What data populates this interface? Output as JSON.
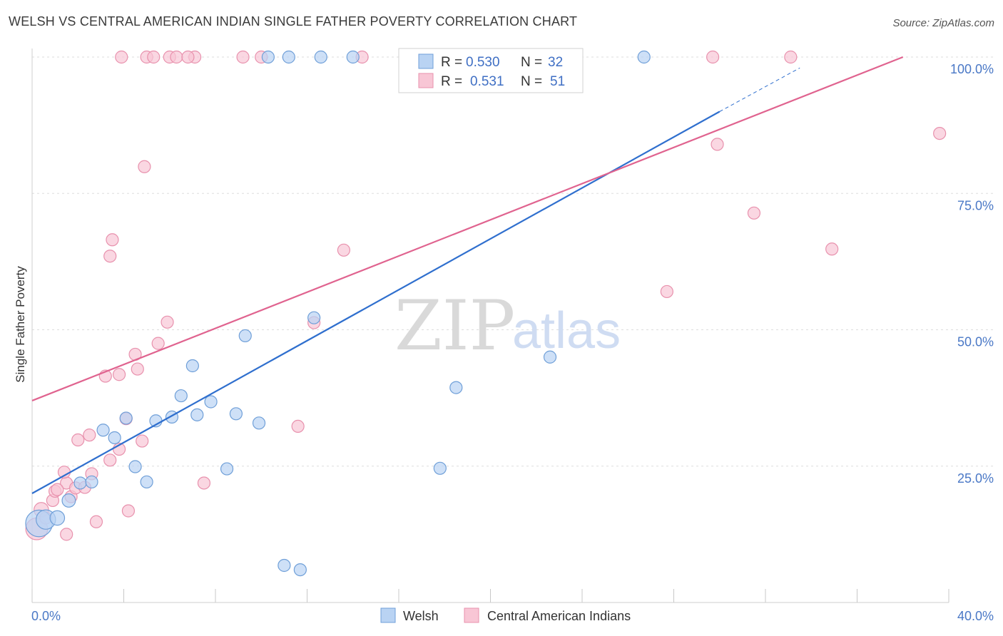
{
  "title": "WELSH VS CENTRAL AMERICAN INDIAN SINGLE FATHER POVERTY CORRELATION CHART",
  "source": "Source: ZipAtlas.com",
  "watermark": {
    "zip": "ZIP",
    "atlas": "atlas"
  },
  "colors": {
    "welsh_fill": "#b9d3f3",
    "welsh_stroke": "#6f9fd8",
    "welsh_line": "#2f6fce",
    "cai_fill": "#f8c6d5",
    "cai_stroke": "#e891ad",
    "cai_line": "#e0638f",
    "grid": "#dddddd",
    "tick_label": "#4a78c6"
  },
  "legend": {
    "rows": [
      {
        "r_label": "R =",
        "r_value": "0.530",
        "n_label": "N =",
        "n_value": "32",
        "series": "welsh"
      },
      {
        "r_label": "R =",
        "r_value": "0.531",
        "n_label": "N =",
        "n_value": "51",
        "series": "cai"
      }
    ]
  },
  "bottom_legend": [
    {
      "label": "Welsh",
      "series": "welsh"
    },
    {
      "label": "Central American Indians",
      "series": "cai"
    }
  ],
  "chart_data": {
    "type": "scatter",
    "title": "WELSH VS CENTRAL AMERICAN INDIAN SINGLE FATHER POVERTY CORRELATION CHART",
    "xlabel": "",
    "ylabel": "Single Father Poverty",
    "xlim": [
      0,
      40
    ],
    "ylim": [
      0,
      100
    ],
    "x_tick_labels": [
      {
        "value": 0,
        "label": "0.0%"
      },
      {
        "value": 40,
        "label": "40.0%"
      }
    ],
    "y_tick_labels": [
      {
        "value": 25,
        "label": "25.0%"
      },
      {
        "value": 50,
        "label": "50.0%"
      },
      {
        "value": 75,
        "label": "75.0%"
      },
      {
        "value": 100,
        "label": "100.0%"
      }
    ],
    "grid": true,
    "legend_position": "top-center",
    "series": [
      {
        "name": "Welsh",
        "key": "welsh",
        "R": 0.53,
        "N": 32,
        "trend": {
          "x": [
            0,
            30
          ],
          "y": [
            20,
            90
          ]
        },
        "trend_dashed": {
          "x": [
            30,
            33.5
          ],
          "y": [
            90,
            98
          ]
        },
        "points": [
          [
            0.3,
            14.5,
            22
          ],
          [
            0.6,
            15.2,
            16
          ],
          [
            1.1,
            15.5,
            12
          ],
          [
            1.6,
            18.7,
            11
          ],
          [
            2.1,
            21.9,
            10
          ],
          [
            2.6,
            22.1,
            10
          ],
          [
            3.1,
            31.6,
            10
          ],
          [
            3.6,
            30.2,
            10
          ],
          [
            4.1,
            33.8,
            10
          ],
          [
            4.5,
            24.9,
            10
          ],
          [
            5.0,
            22.1,
            10
          ],
          [
            5.4,
            33.3,
            10
          ],
          [
            6.1,
            34.0,
            10
          ],
          [
            6.5,
            37.9,
            10
          ],
          [
            7.0,
            43.4,
            10
          ],
          [
            7.2,
            34.4,
            10
          ],
          [
            7.8,
            36.8,
            10
          ],
          [
            8.5,
            24.5,
            10
          ],
          [
            8.9,
            34.6,
            10
          ],
          [
            9.3,
            48.9,
            10
          ],
          [
            9.9,
            32.9,
            10
          ],
          [
            11.0,
            6.8,
            10
          ],
          [
            11.7,
            6.0,
            10
          ],
          [
            12.3,
            52.2,
            10
          ],
          [
            17.8,
            24.6,
            10
          ],
          [
            18.5,
            39.4,
            10
          ],
          [
            22.6,
            45.0,
            10
          ],
          [
            10.3,
            100,
            10
          ],
          [
            11.2,
            100,
            10
          ],
          [
            12.6,
            100,
            10
          ],
          [
            14.0,
            100,
            10
          ],
          [
            26.7,
            100,
            10
          ]
        ]
      },
      {
        "name": "Central American Indians",
        "key": "cai",
        "R": 0.531,
        "N": 51,
        "trend": {
          "x": [
            0,
            38
          ],
          "y": [
            37,
            100
          ]
        },
        "points": [
          [
            0.2,
            13.5,
            18
          ],
          [
            0.4,
            17.0,
            12
          ],
          [
            0.6,
            15.5,
            10
          ],
          [
            0.9,
            18.7,
            10
          ],
          [
            1.0,
            20.4,
            10
          ],
          [
            1.5,
            21.9,
            10
          ],
          [
            1.1,
            20.7,
            10
          ],
          [
            1.4,
            23.9,
            10
          ],
          [
            1.5,
            12.5,
            10
          ],
          [
            1.7,
            19.4,
            10
          ],
          [
            1.9,
            21.0,
            10
          ],
          [
            2.0,
            29.8,
            10
          ],
          [
            2.3,
            21.1,
            10
          ],
          [
            2.5,
            30.7,
            10
          ],
          [
            2.6,
            23.6,
            10
          ],
          [
            2.8,
            14.8,
            10
          ],
          [
            3.2,
            41.5,
            10
          ],
          [
            3.4,
            26.1,
            10
          ],
          [
            3.4,
            63.5,
            10
          ],
          [
            3.5,
            66.5,
            10
          ],
          [
            3.8,
            41.8,
            10
          ],
          [
            3.8,
            28.1,
            10
          ],
          [
            4.1,
            33.7,
            10
          ],
          [
            4.2,
            16.8,
            10
          ],
          [
            4.5,
            45.5,
            10
          ],
          [
            4.6,
            42.8,
            10
          ],
          [
            4.8,
            29.6,
            10
          ],
          [
            4.9,
            79.9,
            10
          ],
          [
            5.5,
            47.5,
            10
          ],
          [
            5.9,
            51.4,
            10
          ],
          [
            7.5,
            21.9,
            10
          ],
          [
            11.6,
            32.3,
            10
          ],
          [
            12.3,
            51.3,
            10
          ],
          [
            13.6,
            64.6,
            10
          ],
          [
            27.7,
            57.0,
            10
          ],
          [
            29.9,
            84.0,
            10
          ],
          [
            31.5,
            71.4,
            10
          ],
          [
            34.9,
            64.8,
            10
          ],
          [
            39.6,
            86.0,
            10
          ],
          [
            3.9,
            100,
            10
          ],
          [
            5.0,
            100,
            10
          ],
          [
            5.3,
            100,
            10
          ],
          [
            6.0,
            100,
            10
          ],
          [
            6.3,
            100,
            10
          ],
          [
            7.1,
            100,
            10
          ],
          [
            9.2,
            100,
            10
          ],
          [
            10.0,
            100,
            10
          ],
          [
            14.4,
            100,
            10
          ],
          [
            29.7,
            100,
            10
          ],
          [
            33.1,
            100,
            10
          ],
          [
            6.8,
            100,
            10
          ]
        ]
      }
    ]
  }
}
